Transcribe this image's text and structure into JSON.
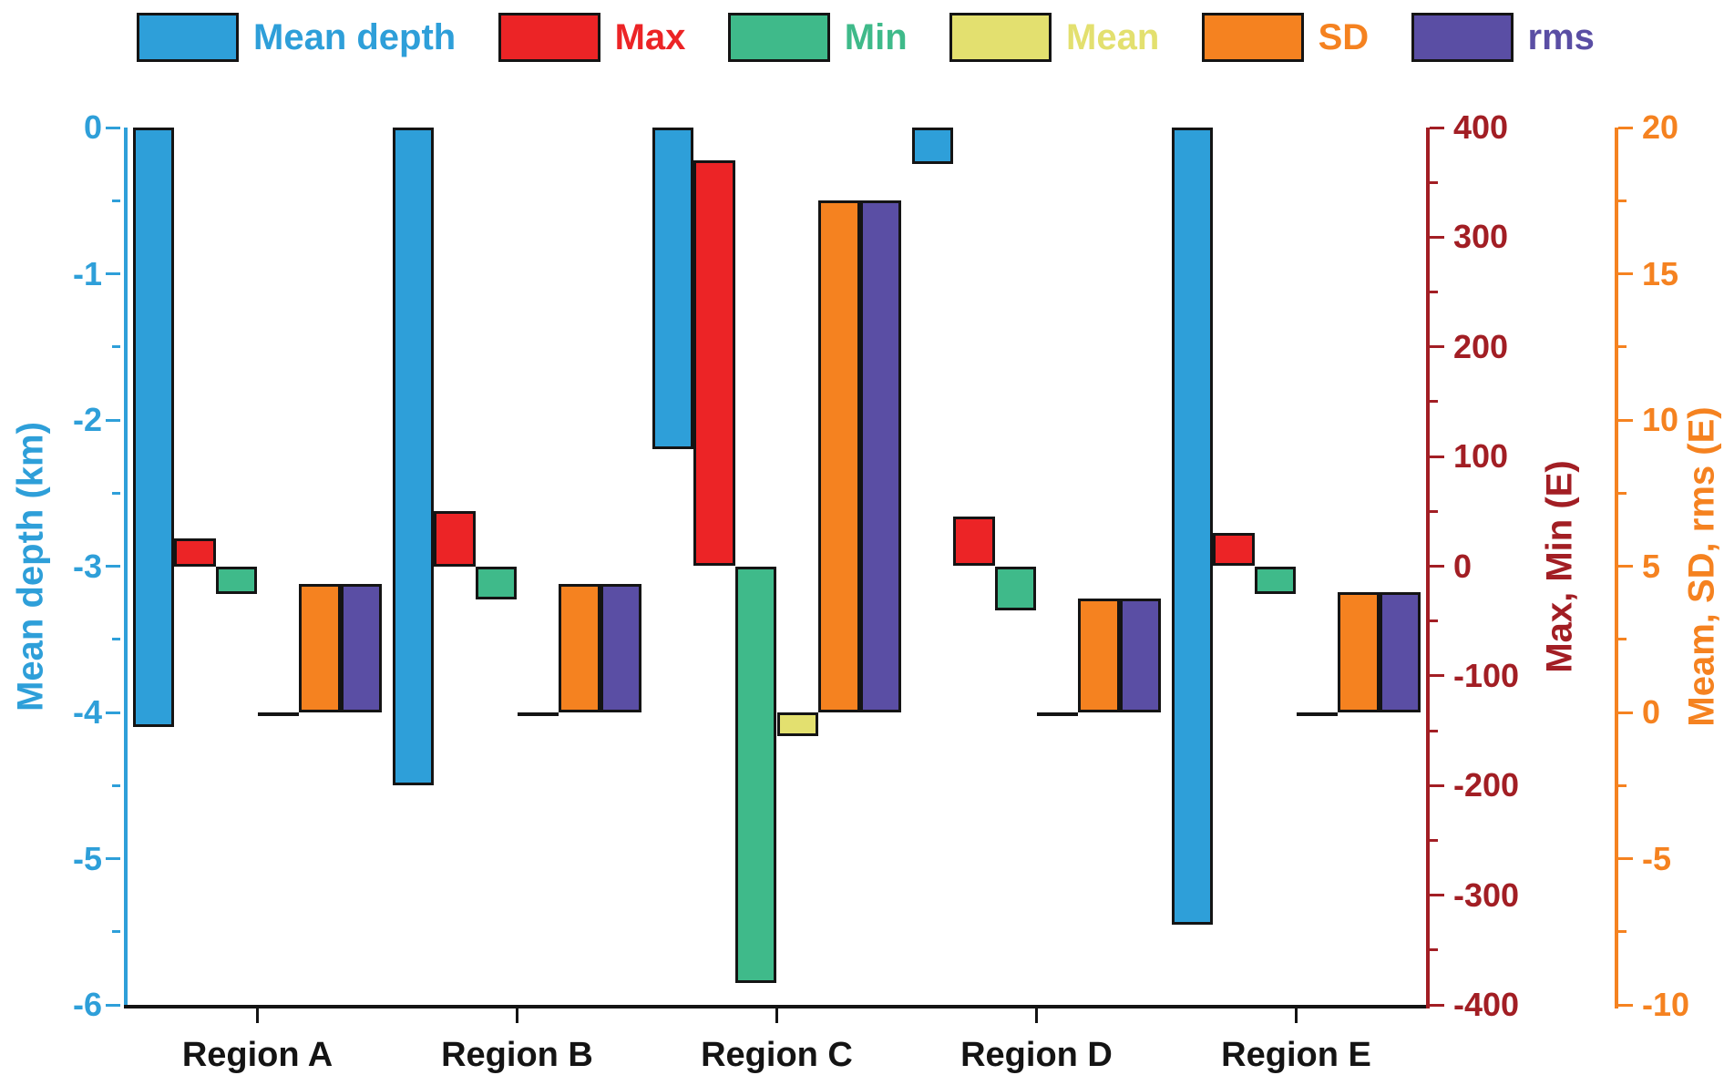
{
  "legend": {
    "items": [
      {
        "label": "Mean depth",
        "color": "#2E9FD9"
      },
      {
        "label": "Max",
        "color": "#EC2426"
      },
      {
        "label": "Min",
        "color": "#3FBA8A"
      },
      {
        "label": "Mean",
        "color": "#E3E06F"
      },
      {
        "label": "SD",
        "color": "#F58220"
      },
      {
        "label": "rms",
        "color": "#5A4EA4"
      }
    ]
  },
  "chart_data": {
    "type": "bar",
    "categories": [
      "Region A",
      "Region B",
      "Region C",
      "Region D",
      "Region E"
    ],
    "series": [
      {
        "name": "Mean depth",
        "axis": "depth",
        "color": "#2E9FD9",
        "values": [
          -4.1,
          -4.5,
          -2.2,
          -0.25,
          -5.45
        ]
      },
      {
        "name": "Max",
        "axis": "maxmin",
        "color": "#EC2426",
        "values": [
          25,
          50,
          370,
          45,
          30
        ]
      },
      {
        "name": "Min",
        "axis": "maxmin",
        "color": "#3FBA8A",
        "values": [
          -25,
          -30,
          -380,
          -40,
          -25
        ]
      },
      {
        "name": "Mean",
        "axis": "stats",
        "color": "#E3E06F",
        "values": [
          0,
          0,
          -0.8,
          0,
          0
        ]
      },
      {
        "name": "SD",
        "axis": "stats",
        "color": "#F58220",
        "values": [
          4.4,
          4.4,
          17.5,
          3.9,
          4.1
        ]
      },
      {
        "name": "rms",
        "axis": "stats",
        "color": "#5A4EA4",
        "values": [
          4.4,
          4.4,
          17.5,
          3.9,
          4.1
        ]
      }
    ],
    "axes": {
      "depth": {
        "label": "Mean depth (km)",
        "color": "#2E9FD9",
        "min": -6,
        "max": 0,
        "major_ticks": [
          0,
          -1,
          -2,
          -3,
          -4,
          -5,
          -6
        ],
        "minor_step": 0.5
      },
      "maxmin": {
        "label": "Max, Min (E)",
        "color": "#A21E24",
        "min": -400,
        "max": 400,
        "major_ticks": [
          400,
          300,
          200,
          100,
          0,
          -100,
          -200,
          -300,
          -400
        ],
        "minor_step": 50
      },
      "stats": {
        "label": "Meam, SD, rms (E)",
        "color": "#F58220",
        "min": -10,
        "max": 20,
        "major_ticks": [
          20,
          15,
          10,
          5,
          0,
          -5,
          -10
        ],
        "minor_step": 2.5
      }
    },
    "grid": false,
    "legend_position": "top"
  }
}
